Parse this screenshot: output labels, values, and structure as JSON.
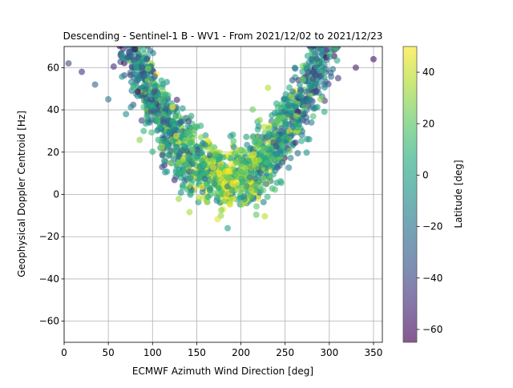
{
  "chart_data": {
    "type": "scatter",
    "title": "Descending - Sentinel-1 B - WV1 - From 2021/12/02 to 2021/12/23",
    "xlabel": "ECMWF Azimuth Wind Direction [deg]",
    "ylabel": "Geophysical Doppler Centroid [Hz]",
    "xlim": [
      0,
      360
    ],
    "ylim": [
      -70,
      70
    ],
    "xticks": [
      0,
      50,
      100,
      150,
      200,
      250,
      300,
      350
    ],
    "yticks": [
      -60,
      -40,
      -20,
      0,
      20,
      40,
      60
    ],
    "grid": true,
    "colorbar": {
      "label": "Latitude [deg]",
      "range": [
        -65,
        50
      ],
      "ticks": [
        -60,
        -40,
        -20,
        0,
        20,
        40
      ],
      "colormap": "viridis"
    },
    "series": [
      {
        "points_sample": [
          {
            "x": 5,
            "y": 62,
            "c": -40
          },
          {
            "x": 20,
            "y": 58,
            "c": -50
          },
          {
            "x": 35,
            "y": 52,
            "c": -30
          },
          {
            "x": 50,
            "y": 45,
            "c": -20
          },
          {
            "x": 70,
            "y": 38,
            "c": -10
          },
          {
            "x": 90,
            "y": 30,
            "c": 10
          },
          {
            "x": 110,
            "y": 22,
            "c": 20
          },
          {
            "x": 130,
            "y": 15,
            "c": 30
          },
          {
            "x": 150,
            "y": 10,
            "c": 0
          },
          {
            "x": 170,
            "y": 5,
            "c": -10
          },
          {
            "x": 190,
            "y": 2,
            "c": 5
          },
          {
            "x": 210,
            "y": 8,
            "c": -20
          },
          {
            "x": 230,
            "y": 15,
            "c": 15
          },
          {
            "x": 250,
            "y": 25,
            "c": -5
          },
          {
            "x": 270,
            "y": 35,
            "c": -30
          },
          {
            "x": 290,
            "y": 45,
            "c": 30
          },
          {
            "x": 310,
            "y": 55,
            "c": -45
          },
          {
            "x": 330,
            "y": 60,
            "c": -55
          },
          {
            "x": 350,
            "y": 64,
            "c": -60
          },
          {
            "x": 185,
            "y": -16,
            "c": 0
          }
        ]
      }
    ]
  }
}
